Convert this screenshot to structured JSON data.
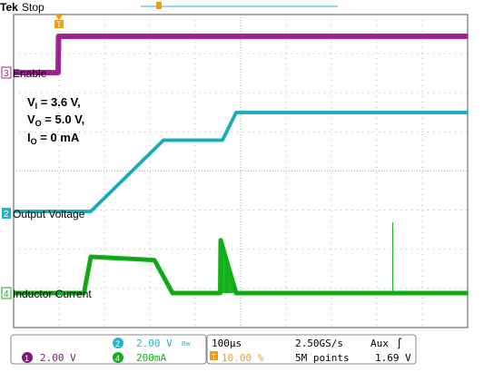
{
  "header": {
    "brand": "Tek",
    "status": "Stop"
  },
  "conditions": [
    {
      "main": "V",
      "sub": "I",
      "rest": " = 3.6 V,"
    },
    {
      "main": "V",
      "sub": "O",
      "rest": " = 5.0 V,"
    },
    {
      "main": "I",
      "sub": "O",
      "rest": " = 0 mA"
    }
  ],
  "channels": {
    "enable": {
      "num": "3",
      "label": "Enable",
      "color": "#a8209a"
    },
    "output": {
      "num": "2",
      "label": "Output Voltage",
      "color": "#1fb4c8"
    },
    "inductor": {
      "num": "4",
      "label": "Inductor Current",
      "color": "#13b01a"
    },
    "ch1": {
      "num": "1",
      "color": "#7a1a72"
    },
    "trigger_marker": {
      "label": "T",
      "color": "#f39c12"
    }
  },
  "readout": {
    "ch1_scale": "2.00 V",
    "ch2_scale": "2.00 V",
    "ch2_bw_symbol": "Bw",
    "ch4_scale": "200mA",
    "timebase": "100µs",
    "sample_rate": "2.50GS/s",
    "trigger_source": "Aux",
    "trigger_slope": "ʃ",
    "trigger_position": "10.00 %",
    "record_length": "5M points",
    "trigger_level": "1.69 V"
  },
  "chart_data": {
    "type": "line",
    "title": "",
    "xlabel": "",
    "ylabel": "",
    "x_unit": "µs",
    "x_scale_per_div": 100,
    "xlim": [
      -100,
      900
    ],
    "grid": true,
    "series": [
      {
        "name": "Enable",
        "unit": "V",
        "x": [
          -100,
          -2,
          -1,
          900
        ],
        "y": [
          0.0,
          0.0,
          3.6,
          3.6
        ]
      },
      {
        "name": "Output Voltage",
        "unit": "V",
        "x": [
          -100,
          70,
          230,
          360,
          390,
          900
        ],
        "y": [
          0.0,
          0.0,
          3.6,
          3.6,
          5.0,
          5.0
        ]
      },
      {
        "name": "Inductor Current",
        "unit": "mA",
        "x": [
          -100,
          55,
          70,
          210,
          250,
          355,
          356,
          390,
          900
        ],
        "y": [
          0,
          0,
          220,
          200,
          0,
          0,
          320,
          0,
          0
        ]
      }
    ]
  }
}
